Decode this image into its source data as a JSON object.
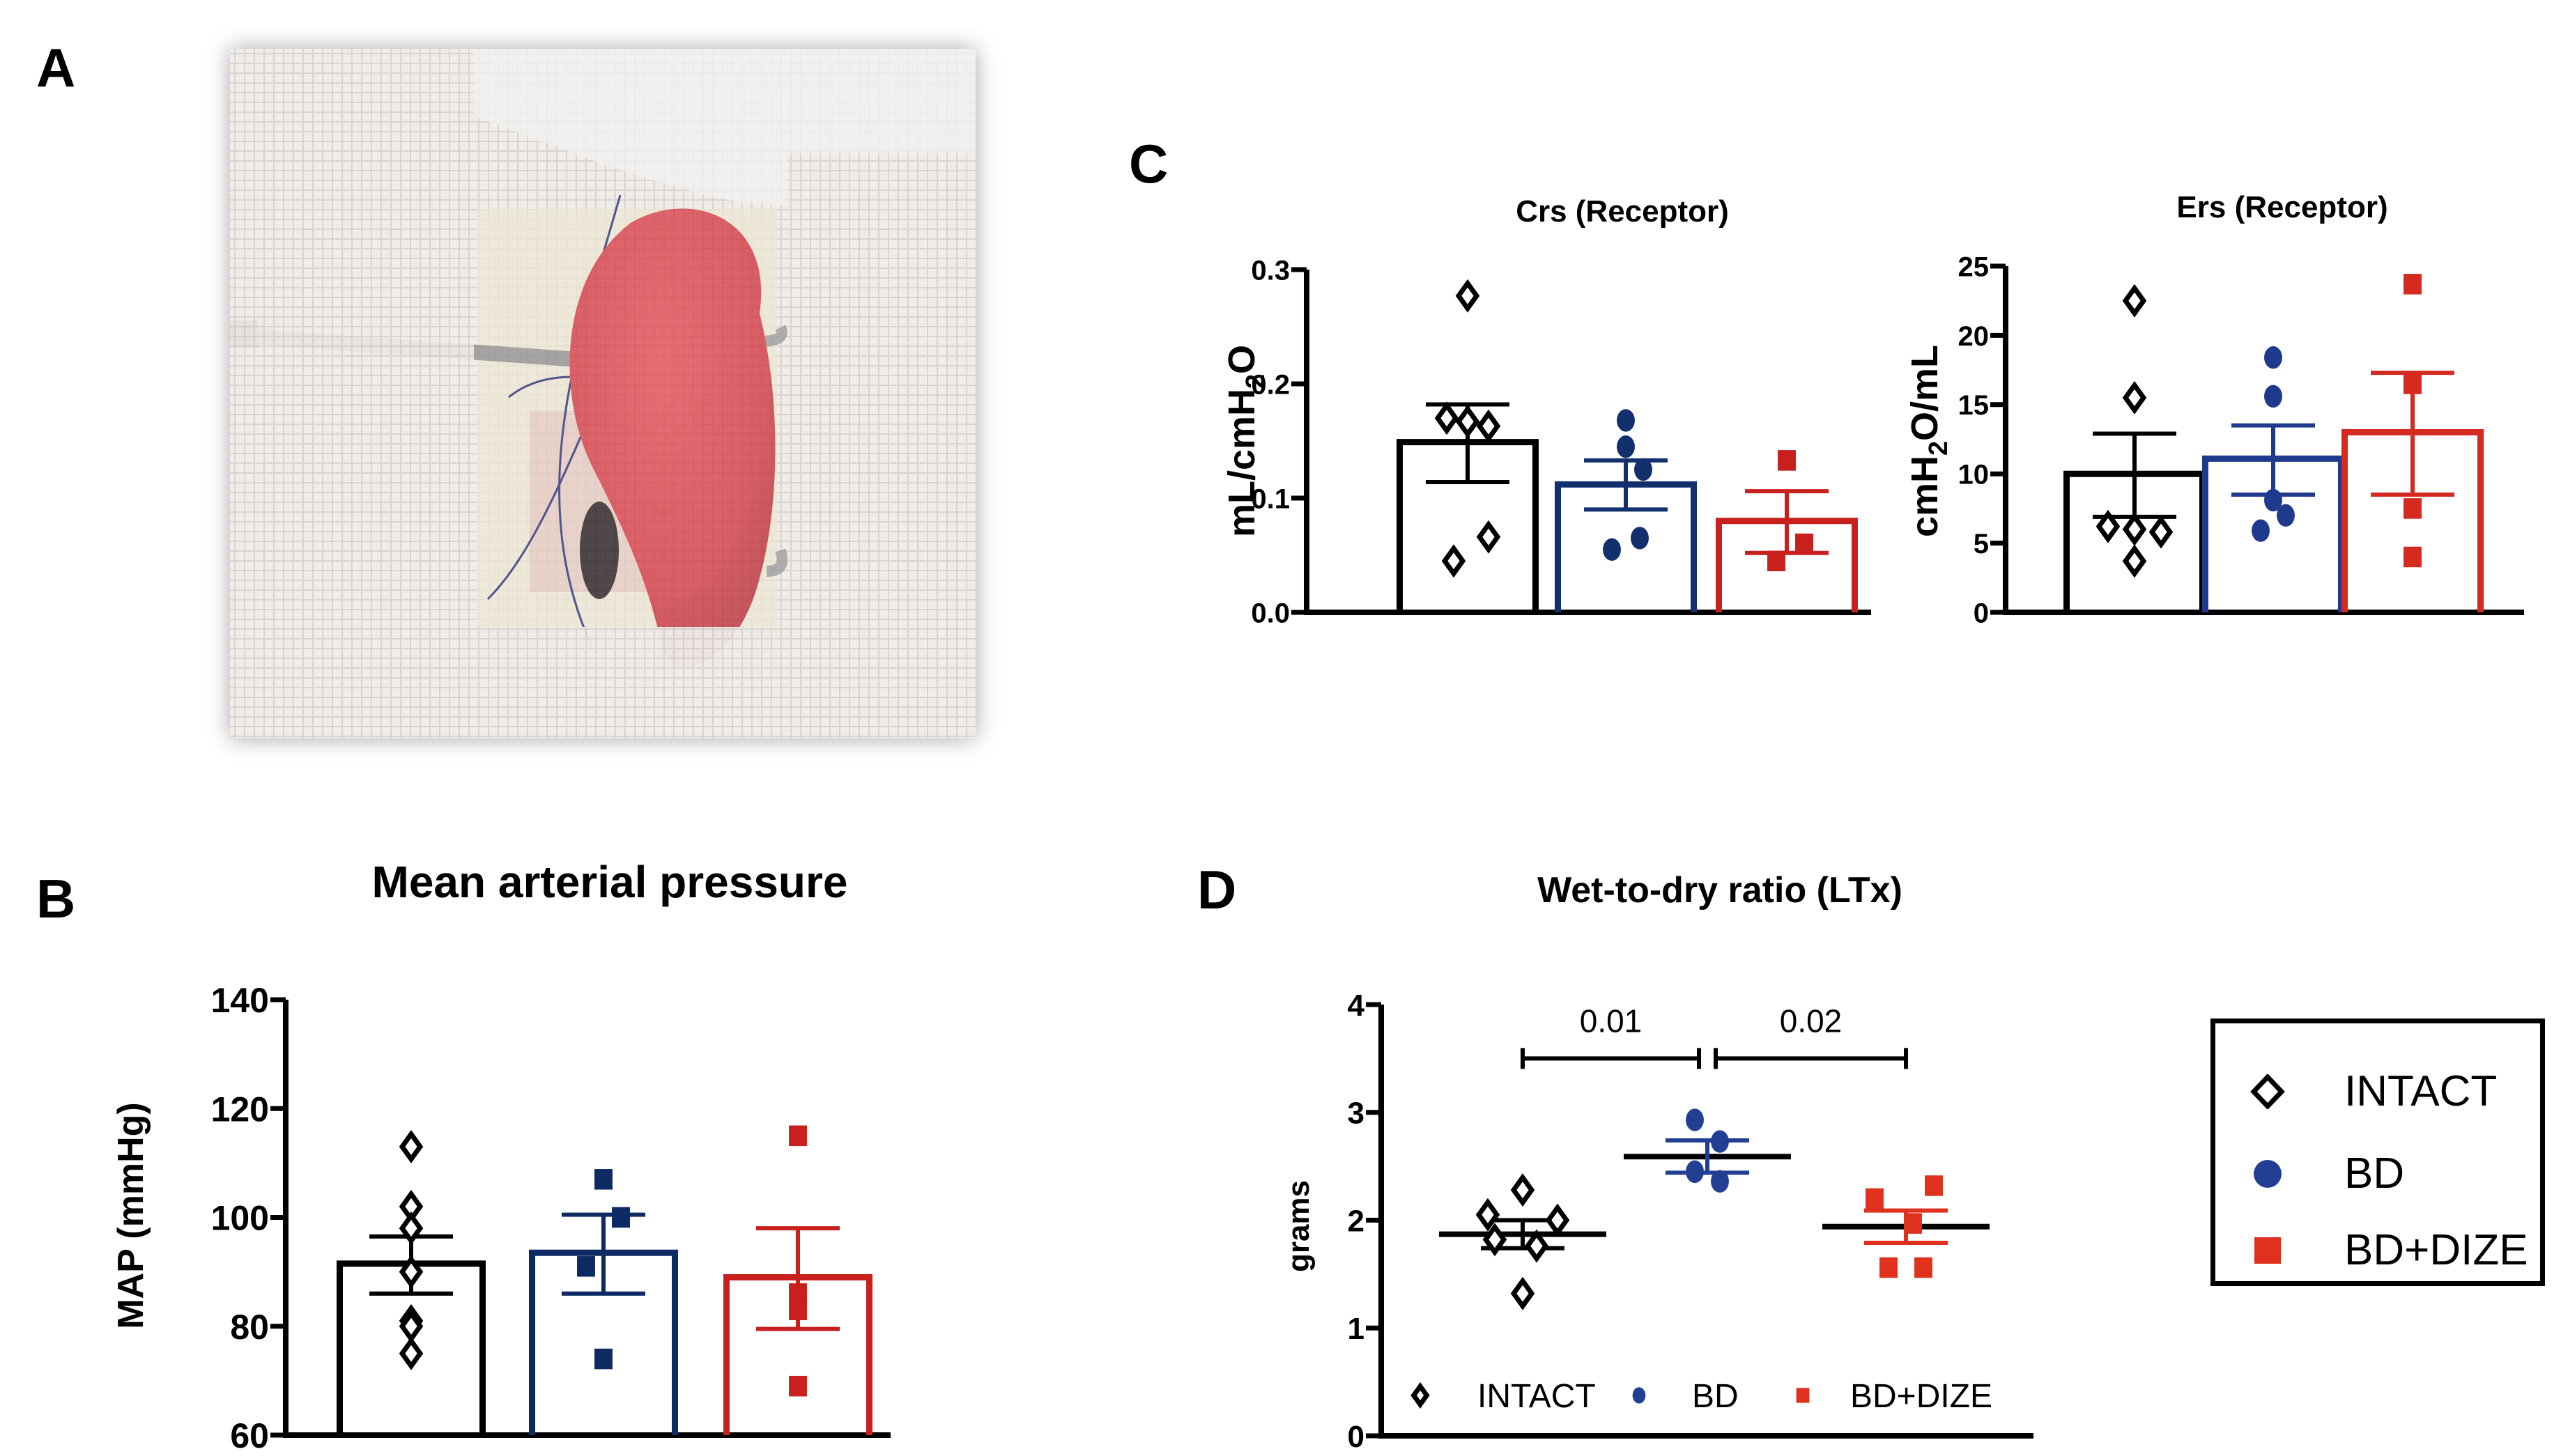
{
  "panels": {
    "A": {
      "letter": "A",
      "image_description": "Surgical photo of a rat lung transplant: red lung lobe held by a metal cannula, surrounded by white gauze"
    },
    "B": {
      "letter": "B"
    },
    "C": {
      "letter": "C"
    },
    "D": {
      "letter": "D"
    }
  },
  "groups": [
    {
      "name": "INTACT",
      "marker": "open-diamond",
      "color": "#000000"
    },
    {
      "name": "BD",
      "marker": "filled-circle",
      "color": "#1f3f94"
    },
    {
      "name": "BD+DIZE",
      "marker": "filled-square",
      "color": "#d42a1f"
    }
  ],
  "legend": {
    "items": [
      {
        "label": "INTACT",
        "marker": "open-diamond",
        "color": "#000000"
      },
      {
        "label": "BD",
        "marker": "filled-circle",
        "color": "#233f93"
      },
      {
        "label": "BD+DIZE",
        "marker": "filled-square",
        "color": "#e0301e"
      }
    ]
  },
  "chart_data": [
    {
      "id": "B",
      "type": "bar",
      "title": "Mean arterial pressure",
      "ylabel": "MAP (mmHg)",
      "xlabel": "",
      "ylim": [
        60,
        140
      ],
      "yticks": [
        60,
        80,
        100,
        120,
        140
      ],
      "categories": [
        "INTACT",
        "BD",
        "BD+DIZE"
      ],
      "colors": [
        "#000000",
        "#0d2a63",
        "#c8201c"
      ],
      "markers": [
        "open-diamond",
        "filled-square",
        "filled-square"
      ],
      "series": [
        {
          "name": "INTACT",
          "mean": 91.5,
          "sem_upper": 96.5,
          "sem_lower": 86.0,
          "points": [
            113,
            102,
            98,
            90,
            81,
            80,
            75
          ]
        },
        {
          "name": "BD",
          "mean": 93.5,
          "sem_upper": 100.5,
          "sem_lower": 86.0,
          "points": [
            107,
            100,
            91,
            74
          ]
        },
        {
          "name": "BD+DIZE",
          "mean": 89.0,
          "sem_upper": 98.0,
          "sem_lower": 79.5,
          "points": [
            115,
            86,
            83,
            69
          ]
        }
      ]
    },
    {
      "id": "C1",
      "type": "bar",
      "title": "Crs (Receptor)",
      "ylabel": "mL/cmH2O",
      "ylabel_parts": {
        "pre": "mL/cmH",
        "sub": "2",
        "post": "O"
      },
      "xlabel": "",
      "ylim": [
        0,
        0.3
      ],
      "yticks": [
        "0.0",
        "0.1",
        "0.2",
        "0.3"
      ],
      "categories": [
        "INTACT",
        "BD",
        "BD+DIZE"
      ],
      "colors": [
        "#000000",
        "#12306e",
        "#c8201c"
      ],
      "markers": [
        "open-diamond",
        "filled-circle",
        "filled-square"
      ],
      "series": [
        {
          "name": "INTACT",
          "mean": 0.149,
          "sem_upper": 0.182,
          "sem_lower": 0.114,
          "points": [
            0.277,
            0.17,
            0.167,
            0.163,
            0.066,
            0.045
          ]
        },
        {
          "name": "BD",
          "mean": 0.112,
          "sem_upper": 0.133,
          "sem_lower": 0.09,
          "points": [
            0.168,
            0.145,
            0.125,
            0.065,
            0.055
          ]
        },
        {
          "name": "BD+DIZE",
          "mean": 0.08,
          "sem_upper": 0.106,
          "sem_lower": 0.052,
          "points": [
            0.133,
            0.06,
            0.045
          ]
        }
      ]
    },
    {
      "id": "C2",
      "type": "bar",
      "title": "Ers (Receptor)",
      "ylabel": "cmH2O/mL",
      "ylabel_parts": {
        "pre": "cmH",
        "sub": "2",
        "post": "O/mL"
      },
      "xlabel": "",
      "ylim": [
        0,
        25
      ],
      "yticks": [
        "0",
        "5",
        "10",
        "15",
        "20",
        "25"
      ],
      "categories": [
        "INTACT",
        "BD",
        "BD+DIZE"
      ],
      "colors": [
        "#000000",
        "#1f3a8c",
        "#d42a1f"
      ],
      "markers": [
        "open-diamond",
        "filled-circle",
        "filled-square"
      ],
      "series": [
        {
          "name": "INTACT",
          "mean": 10.0,
          "sem_upper": 12.9,
          "sem_lower": 6.9,
          "points": [
            22.5,
            15.5,
            6.2,
            6.0,
            5.8,
            3.7
          ]
        },
        {
          "name": "BD",
          "mean": 11.1,
          "sem_upper": 13.5,
          "sem_lower": 8.5,
          "points": [
            18.4,
            15.6,
            8.1,
            7.0,
            5.9
          ]
        },
        {
          "name": "BD+DIZE",
          "mean": 13.0,
          "sem_upper": 17.3,
          "sem_lower": 8.5,
          "points": [
            23.7,
            16.5,
            7.5,
            4.0
          ]
        }
      ]
    },
    {
      "id": "D",
      "type": "scatter",
      "title": "Wet-to-dry ratio (LTx)",
      "ylabel": "grams",
      "xlabel": "",
      "ylim": [
        0,
        4
      ],
      "yticks": [
        "0",
        "1",
        "2",
        "3",
        "4"
      ],
      "categories": [
        "INTACT",
        "BD",
        "BD+DIZE"
      ],
      "colors": [
        "#000000",
        "#233f93",
        "#e0301e"
      ],
      "markers": [
        "open-diamond",
        "filled-circle",
        "filled-square"
      ],
      "series": [
        {
          "name": "INTACT",
          "mean": 1.87,
          "sem_upper": 2.0,
          "sem_lower": 1.74,
          "points": [
            2.28,
            2.05,
            2.0,
            1.82,
            1.76,
            1.32
          ]
        },
        {
          "name": "BD",
          "mean": 2.59,
          "sem_upper": 2.74,
          "sem_lower": 2.44,
          "points": [
            2.93,
            2.73,
            2.45,
            2.36
          ]
        },
        {
          "name": "BD+DIZE",
          "mean": 1.94,
          "sem_upper": 2.09,
          "sem_lower": 1.79,
          "points": [
            2.32,
            2.2,
            1.97,
            1.56,
            1.56
          ]
        }
      ],
      "annotations": [
        {
          "type": "bracket",
          "from": "INTACT",
          "to": "BD",
          "y": 3.5,
          "label": "0.01"
        },
        {
          "type": "bracket",
          "from": "BD",
          "to": "BD+DIZE",
          "y": 3.5,
          "label": "0.02"
        }
      ],
      "inline_legend": [
        "INTACT",
        "BD",
        "BD+DIZE"
      ],
      "legend": "bottom-inside"
    }
  ]
}
